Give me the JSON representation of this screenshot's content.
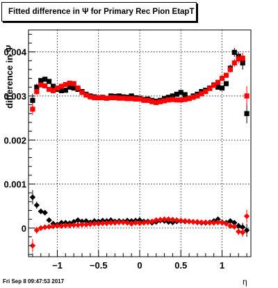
{
  "title": "Fitted difference in  Ψ  for Primary Rec Pion EtapT",
  "footer": "Fri Sep  8 09:47:53 2017",
  "xlabel": "η",
  "ylabel": "difference in  Ψ",
  "chart_data": {
    "type": "scatter",
    "title": "Fitted difference in  Ψ  for Primary Rec Pion EtapT",
    "xlabel": "η",
    "ylabel": "difference in  Ψ",
    "xlim": [
      -1.35,
      1.35
    ],
    "ylim": [
      -0.00065,
      0.0045
    ],
    "xticks": [
      -1,
      -0.5,
      0,
      0.5,
      1
    ],
    "xtick_labels": [
      "−1",
      "−0.5",
      "0",
      "0.5",
      "1"
    ],
    "yticks": [
      0,
      0.001,
      0.002,
      0.003,
      0.004
    ],
    "ytick_labels": [
      "0",
      "0.001",
      "0.002",
      "0.003",
      "0.004"
    ],
    "grid": true,
    "series": [
      {
        "marker": "square",
        "color": "#000000",
        "x": [
          -1.3,
          -1.25,
          -1.2,
          -1.15,
          -1.1,
          -1.05,
          -1.0,
          -0.95,
          -0.9,
          -0.85,
          -0.8,
          -0.75,
          -0.7,
          -0.65,
          -0.6,
          -0.55,
          -0.5,
          -0.45,
          -0.4,
          -0.35,
          -0.3,
          -0.25,
          -0.2,
          -0.15,
          -0.1,
          -0.05,
          0.0,
          0.05,
          0.1,
          0.15,
          0.2,
          0.25,
          0.3,
          0.35,
          0.4,
          0.45,
          0.5,
          0.55,
          0.6,
          0.65,
          0.7,
          0.75,
          0.8,
          0.85,
          0.9,
          0.95,
          1.0,
          1.05,
          1.1,
          1.15,
          1.2,
          1.25,
          1.3
        ],
        "y": [
          0.0029,
          0.0032,
          0.00335,
          0.00338,
          0.00333,
          0.00322,
          0.00315,
          0.00312,
          0.00313,
          0.0032,
          0.00318,
          0.00315,
          0.0031,
          0.00304,
          0.003,
          0.00298,
          0.00296,
          0.00297,
          0.00295,
          0.003,
          0.00299,
          0.003,
          0.00298,
          0.00297,
          0.003,
          0.00296,
          0.00295,
          0.00292,
          0.00293,
          0.0029,
          0.00288,
          0.0029,
          0.00294,
          0.00297,
          0.003,
          0.00304,
          0.00308,
          0.00303,
          0.00295,
          0.003,
          0.00304,
          0.0031,
          0.00313,
          0.00318,
          0.00325,
          0.0032,
          0.00318,
          0.00328,
          0.00363,
          0.00399,
          0.0039,
          0.00375,
          0.0026
        ],
        "err": [
          0.00015,
          8e-05,
          5e-05,
          5e-05,
          4e-05,
          4e-05,
          4e-05,
          4e-05,
          4e-05,
          4e-05,
          4e-05,
          4e-05,
          4e-05,
          4e-05,
          4e-05,
          4e-05,
          4e-05,
          4e-05,
          4e-05,
          4e-05,
          4e-05,
          4e-05,
          4e-05,
          4e-05,
          4e-05,
          4e-05,
          4e-05,
          4e-05,
          4e-05,
          4e-05,
          4e-05,
          4e-05,
          4e-05,
          4e-05,
          4e-05,
          4e-05,
          4e-05,
          4e-05,
          4e-05,
          4e-05,
          4e-05,
          4e-05,
          4e-05,
          4e-05,
          4e-05,
          4e-05,
          4e-05,
          5e-05,
          8e-05,
          0.0001,
          0.0001,
          0.00015,
          0.00022
        ]
      },
      {
        "marker": "square",
        "color": "#ff0000",
        "x": [
          -1.3,
          -1.25,
          -1.2,
          -1.15,
          -1.1,
          -1.05,
          -1.0,
          -0.95,
          -0.9,
          -0.85,
          -0.8,
          -0.75,
          -0.7,
          -0.65,
          -0.6,
          -0.55,
          -0.5,
          -0.45,
          -0.4,
          -0.35,
          -0.3,
          -0.25,
          -0.2,
          -0.15,
          -0.1,
          -0.05,
          0.0,
          0.05,
          0.1,
          0.15,
          0.2,
          0.25,
          0.3,
          0.35,
          0.4,
          0.45,
          0.5,
          0.55,
          0.6,
          0.65,
          0.7,
          0.75,
          0.8,
          0.85,
          0.9,
          0.95,
          1.0,
          1.05,
          1.1,
          1.15,
          1.2,
          1.25,
          1.3
        ],
        "y": [
          0.0027,
          0.0031,
          0.00325,
          0.00323,
          0.00315,
          0.00312,
          0.00318,
          0.00322,
          0.00326,
          0.00329,
          0.00328,
          0.00318,
          0.00308,
          0.00302,
          0.00298,
          0.00296,
          0.00296,
          0.00296,
          0.00295,
          0.00296,
          0.00296,
          0.00295,
          0.00295,
          0.00294,
          0.00294,
          0.00293,
          0.00293,
          0.0029,
          0.0029,
          0.00287,
          0.00285,
          0.00287,
          0.00289,
          0.00291,
          0.00292,
          0.00291,
          0.00291,
          0.00292,
          0.00294,
          0.00297,
          0.003,
          0.00305,
          0.0031,
          0.00317,
          0.00324,
          0.00331,
          0.0034,
          0.00347,
          0.0036,
          0.00375,
          0.00384,
          0.00386,
          0.003
        ],
        "err": [
          0.00013,
          7e-05,
          5e-05,
          4e-05,
          4e-05,
          4e-05,
          4e-05,
          4e-05,
          4e-05,
          4e-05,
          4e-05,
          4e-05,
          4e-05,
          4e-05,
          4e-05,
          4e-05,
          4e-05,
          4e-05,
          4e-05,
          4e-05,
          4e-05,
          4e-05,
          4e-05,
          4e-05,
          4e-05,
          4e-05,
          4e-05,
          4e-05,
          4e-05,
          4e-05,
          4e-05,
          4e-05,
          4e-05,
          4e-05,
          4e-05,
          4e-05,
          4e-05,
          4e-05,
          4e-05,
          4e-05,
          4e-05,
          4e-05,
          4e-05,
          4e-05,
          4e-05,
          4e-05,
          4e-05,
          5e-05,
          7e-05,
          9e-05,
          0.0001,
          0.00012,
          0.00022
        ]
      },
      {
        "marker": "diamond",
        "color": "#000000",
        "x": [
          -1.3,
          -1.25,
          -1.2,
          -1.15,
          -1.1,
          -1.05,
          -1.0,
          -0.95,
          -0.9,
          -0.85,
          -0.8,
          -0.75,
          -0.7,
          -0.65,
          -0.6,
          -0.55,
          -0.5,
          -0.45,
          -0.4,
          -0.35,
          -0.3,
          -0.25,
          -0.2,
          -0.15,
          -0.1,
          -0.05,
          0.0,
          0.05,
          0.1,
          0.15,
          0.2,
          0.25,
          0.3,
          0.35,
          0.4,
          0.45,
          0.5,
          0.55,
          0.6,
          0.65,
          0.7,
          0.75,
          0.8,
          0.85,
          0.9,
          0.95,
          1.0,
          1.05,
          1.1,
          1.15,
          1.2,
          1.25,
          1.3
        ],
        "y": [
          0.0007,
          0.00052,
          0.00038,
          0.00035,
          0.00018,
          0.0001,
          8e-05,
          0.00012,
          0.00012,
          0.00011,
          0.00014,
          0.00018,
          0.00015,
          0.00016,
          0.00013,
          0.00016,
          0.00015,
          0.00017,
          0.00016,
          0.00018,
          0.00015,
          0.00016,
          0.00015,
          0.00017,
          0.00016,
          0.00017,
          0.00018,
          0.00015,
          0.00015,
          0.00012,
          0.00014,
          0.00017,
          0.00016,
          0.00014,
          0.00013,
          0.00015,
          0.00016,
          0.00015,
          0.00015,
          0.00014,
          0.00013,
          0.00012,
          0.00012,
          0.00013,
          0.00016,
          0.0002,
          0.00013,
          0.00012,
          0.00016,
          0.00012,
          5e-05,
          2e-05,
          -5e-05
        ],
        "err": [
          0.00016,
          8e-05,
          5e-05,
          4e-05,
          4e-05,
          3e-05,
          3e-05,
          3e-05,
          3e-05,
          3e-05,
          3e-05,
          3e-05,
          3e-05,
          3e-05,
          3e-05,
          3e-05,
          3e-05,
          3e-05,
          3e-05,
          3e-05,
          3e-05,
          3e-05,
          3e-05,
          3e-05,
          3e-05,
          3e-05,
          3e-05,
          3e-05,
          3e-05,
          3e-05,
          3e-05,
          3e-05,
          3e-05,
          3e-05,
          3e-05,
          3e-05,
          3e-05,
          3e-05,
          3e-05,
          3e-05,
          3e-05,
          3e-05,
          3e-05,
          3e-05,
          3e-05,
          3e-05,
          3e-05,
          4e-05,
          5e-05,
          6e-05,
          7e-05,
          0.0001,
          0.00015
        ]
      },
      {
        "marker": "diamond",
        "color": "#ff0000",
        "x": [
          -1.3,
          -1.25,
          -1.2,
          -1.15,
          -1.1,
          -1.05,
          -1.0,
          -0.95,
          -0.9,
          -0.85,
          -0.8,
          -0.75,
          -0.7,
          -0.65,
          -0.6,
          -0.55,
          -0.5,
          -0.45,
          -0.4,
          -0.35,
          -0.3,
          -0.25,
          -0.2,
          -0.15,
          -0.1,
          -0.05,
          0.0,
          0.05,
          0.1,
          0.15,
          0.2,
          0.25,
          0.3,
          0.35,
          0.4,
          0.45,
          0.5,
          0.55,
          0.6,
          0.65,
          0.7,
          0.75,
          0.8,
          0.85,
          0.9,
          0.95,
          1.0,
          1.05,
          1.1,
          1.15,
          1.2,
          1.25,
          1.3
        ],
        "y": [
          -0.0004,
          -5e-05,
          0.0,
          2e-05,
          3e-05,
          4e-05,
          5e-05,
          5e-05,
          6e-05,
          6e-05,
          7e-05,
          7e-05,
          8e-05,
          8e-05,
          9e-05,
          0.0001,
          0.0001,
          0.00011,
          0.00011,
          0.00012,
          0.00012,
          0.00013,
          0.00013,
          0.00012,
          0.0001,
          0.00012,
          0.00011,
          0.00012,
          0.00013,
          0.00015,
          0.00018,
          0.00019,
          0.0002,
          0.0002,
          0.00019,
          0.00018,
          0.00017,
          0.00016,
          0.00015,
          0.00014,
          0.00014,
          0.00013,
          0.00013,
          0.00012,
          0.00012,
          0.00013,
          0.00012,
          0.0001,
          5e-05,
          3e-05,
          -8e-05,
          -0.0001,
          0.00027
        ],
        "err": [
          0.00015,
          8e-05,
          5e-05,
          4e-05,
          3e-05,
          3e-05,
          3e-05,
          3e-05,
          3e-05,
          3e-05,
          3e-05,
          3e-05,
          3e-05,
          3e-05,
          3e-05,
          3e-05,
          3e-05,
          3e-05,
          3e-05,
          3e-05,
          3e-05,
          3e-05,
          3e-05,
          3e-05,
          3e-05,
          3e-05,
          3e-05,
          3e-05,
          3e-05,
          3e-05,
          3e-05,
          3e-05,
          3e-05,
          3e-05,
          3e-05,
          3e-05,
          3e-05,
          3e-05,
          3e-05,
          3e-05,
          3e-05,
          3e-05,
          3e-05,
          3e-05,
          3e-05,
          3e-05,
          3e-05,
          4e-05,
          5e-05,
          6e-05,
          8e-05,
          0.0001,
          0.00015
        ]
      }
    ]
  }
}
